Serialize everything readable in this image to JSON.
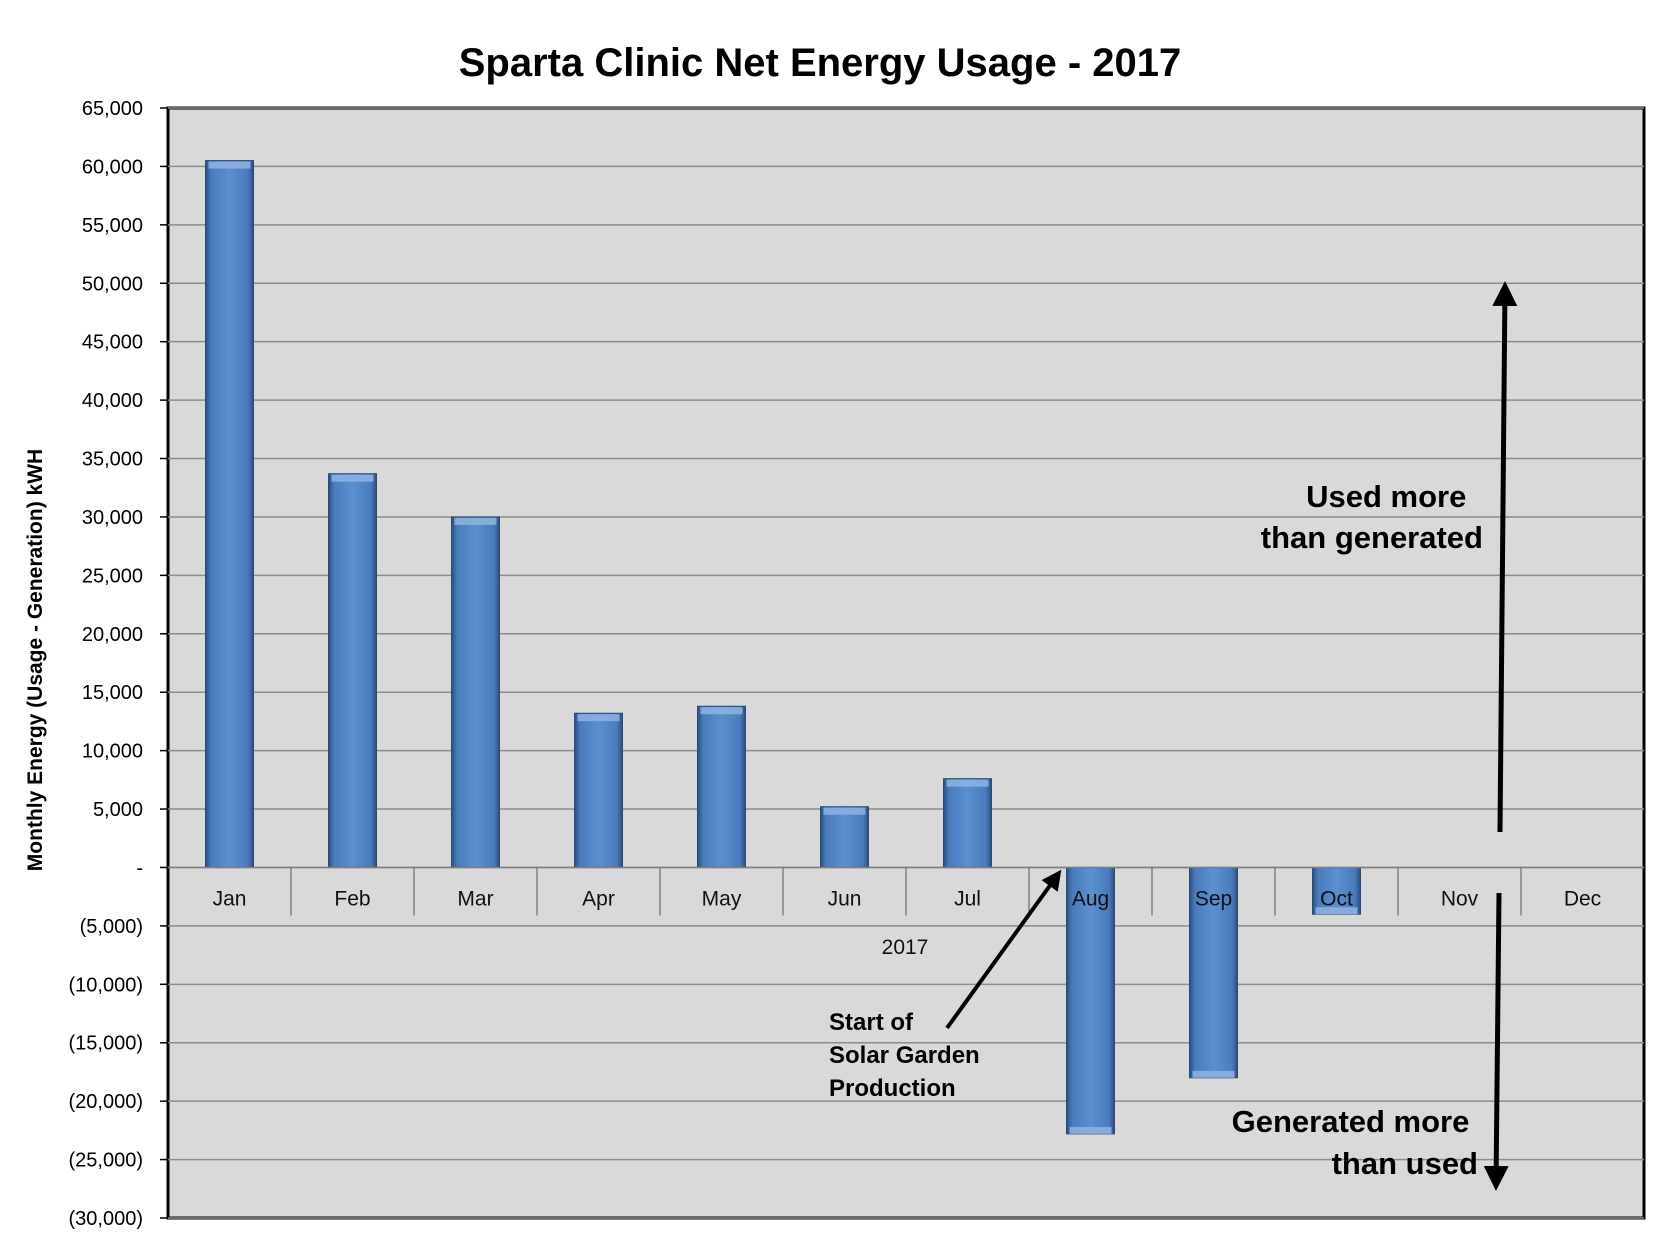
{
  "chart_data": {
    "type": "bar",
    "title": "Sparta Clinic Net Energy Usage - 2017",
    "ylabel": "Monthly Energy (Usage - Generation)  kWH",
    "xlabel": "2017",
    "categories": [
      "Jan",
      "Feb",
      "Mar",
      "Apr",
      "May",
      "Jun",
      "Jul",
      "Aug",
      "Sep",
      "Oct",
      "Nov",
      "Dec"
    ],
    "values": [
      60500,
      33700,
      30000,
      13200,
      13800,
      5200,
      7600,
      -22800,
      -18000,
      -4000,
      null,
      null
    ],
    "ylim": [
      -30000,
      65000
    ],
    "yticks": [
      65000,
      60000,
      55000,
      50000,
      45000,
      40000,
      35000,
      30000,
      25000,
      20000,
      15000,
      10000,
      5000,
      0,
      -5000,
      -10000,
      -15000,
      -20000,
      -25000,
      -30000
    ],
    "ytick_labels": [
      "65,000",
      "60,000",
      "55,000",
      "50,000",
      "45,000",
      "40,000",
      "35,000",
      "30,000",
      "25,000",
      "20,000",
      "15,000",
      "10,000",
      "5,000",
      "-",
      "(5,000)",
      "(10,000)",
      "(15,000)",
      "(20,000)",
      "(25,000)",
      "(30,000)"
    ],
    "grid": true,
    "bar_color": "#4f81bd",
    "plot_background": "#d9d9d9",
    "annotations": {
      "used_more": [
        "Used more",
        "than generated"
      ],
      "generated_more": [
        "Generated more",
        "than used"
      ],
      "solar_start": [
        "Start of",
        "Solar Garden",
        "Production"
      ]
    }
  }
}
